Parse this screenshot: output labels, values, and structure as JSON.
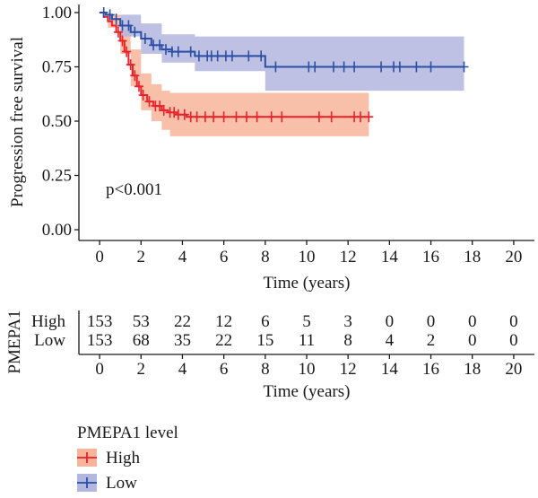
{
  "chart_data": {
    "type": "line",
    "subtype": "kaplan-meier",
    "ylabel": "Progression free survival",
    "xlabel": "Time (years)",
    "xlim": [
      -1,
      21
    ],
    "ylim": [
      0,
      1
    ],
    "x_ticks": [
      0,
      2,
      4,
      6,
      8,
      10,
      12,
      14,
      16,
      18,
      20
    ],
    "y_ticks": [
      "0.00",
      "0.25",
      "0.50",
      "0.75",
      "1.00"
    ],
    "annotation": "p<0.001",
    "legend_title": "PMEPA1 level",
    "legend_position": "bottom-left",
    "series": [
      {
        "name": "High",
        "color": "#e8212a",
        "band_color": "#f7b49a",
        "curve": [
          [
            0,
            1.0
          ],
          [
            0.2,
            0.98
          ],
          [
            0.4,
            0.96
          ],
          [
            0.6,
            0.94
          ],
          [
            0.8,
            0.91
          ],
          [
            1.0,
            0.87
          ],
          [
            1.2,
            0.82
          ],
          [
            1.4,
            0.76
          ],
          [
            1.6,
            0.71
          ],
          [
            1.8,
            0.66
          ],
          [
            2.0,
            0.62
          ],
          [
            2.3,
            0.59
          ],
          [
            2.6,
            0.57
          ],
          [
            3.0,
            0.55
          ],
          [
            3.3,
            0.54
          ],
          [
            3.7,
            0.53
          ],
          [
            4.2,
            0.52
          ],
          [
            13.0,
            0.52
          ]
        ],
        "ci_upper": [
          [
            0,
            1.0
          ],
          [
            0.4,
            0.99
          ],
          [
            1.0,
            0.92
          ],
          [
            1.5,
            0.83
          ],
          [
            2.0,
            0.72
          ],
          [
            2.5,
            0.67
          ],
          [
            3.0,
            0.64
          ],
          [
            3.4,
            0.63
          ],
          [
            13.0,
            0.63
          ]
        ],
        "ci_lower": [
          [
            0,
            1.0
          ],
          [
            0.4,
            0.93
          ],
          [
            1.0,
            0.81
          ],
          [
            1.5,
            0.66
          ],
          [
            2.0,
            0.55
          ],
          [
            2.5,
            0.5
          ],
          [
            3.0,
            0.46
          ],
          [
            3.4,
            0.43
          ],
          [
            13.0,
            0.43
          ]
        ],
        "censor_times": [
          0.9,
          1.1,
          1.3,
          1.5,
          1.7,
          1.9,
          2.1,
          2.4,
          2.7,
          2.9,
          3.1,
          3.4,
          3.6,
          3.8,
          4.1,
          4.4,
          4.7,
          5.1,
          5.5,
          6.0,
          6.6,
          7.1,
          7.6,
          8.3,
          8.8,
          10.6,
          11.2,
          12.3,
          12.6,
          13.0
        ]
      },
      {
        "name": "Low",
        "color": "#2b4fa3",
        "band_color": "#b3b6de",
        "curve": [
          [
            0,
            1.0
          ],
          [
            0.3,
            0.99
          ],
          [
            0.6,
            0.97
          ],
          [
            1.0,
            0.94
          ],
          [
            1.5,
            0.91
          ],
          [
            2.0,
            0.88
          ],
          [
            2.5,
            0.85
          ],
          [
            3.0,
            0.83
          ],
          [
            3.5,
            0.82
          ],
          [
            4.6,
            0.82
          ],
          [
            4.6,
            0.8
          ],
          [
            8.0,
            0.8
          ],
          [
            8.0,
            0.75
          ],
          [
            17.6,
            0.75
          ]
        ],
        "ci_upper": [
          [
            0,
            1.0
          ],
          [
            1.0,
            0.99
          ],
          [
            2.0,
            0.95
          ],
          [
            3.0,
            0.9
          ],
          [
            4.6,
            0.89
          ],
          [
            17.6,
            0.89
          ]
        ],
        "ci_lower": [
          [
            0,
            1.0
          ],
          [
            1.0,
            0.89
          ],
          [
            2.0,
            0.81
          ],
          [
            3.0,
            0.77
          ],
          [
            4.6,
            0.73
          ],
          [
            8.0,
            0.73
          ],
          [
            8.0,
            0.64
          ],
          [
            17.6,
            0.64
          ]
        ],
        "censor_times": [
          0.2,
          0.5,
          0.8,
          1.1,
          1.4,
          1.7,
          2.2,
          2.6,
          2.9,
          3.2,
          3.5,
          3.8,
          4.4,
          4.8,
          5.2,
          5.4,
          5.7,
          6.1,
          6.4,
          7.2,
          7.8,
          8.5,
          10.1,
          10.4,
          11.3,
          11.8,
          12.3,
          13.6,
          14.2,
          14.5,
          15.3,
          16.0,
          17.6
        ]
      }
    ],
    "risk_table": {
      "group_label": "PMEPA1",
      "xlabel": "Time (years)",
      "rows": [
        {
          "name": "High",
          "color": "#e8212a",
          "counts": [
            "153",
            "53",
            "22",
            "12",
            "6",
            "5",
            "3",
            "0",
            "0",
            "0",
            "0"
          ]
        },
        {
          "name": "Low",
          "color": "#2b4fa3",
          "counts": [
            "153",
            "68",
            "35",
            "22",
            "15",
            "11",
            "8",
            "4",
            "2",
            "0",
            "0"
          ]
        }
      ]
    }
  }
}
